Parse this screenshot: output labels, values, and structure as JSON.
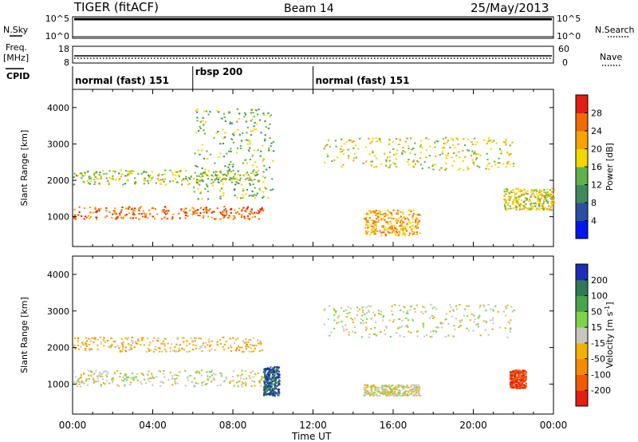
{
  "header": {
    "title": "TIGER (fitACF)",
    "beam": "Beam 14",
    "date": "25/May/2013"
  },
  "status_panel": {
    "left_labels": {
      "nsky": "N.Sky",
      "freq": "Freq.",
      "freq_unit": "[MHz]",
      "cpid": "CPID"
    },
    "right_labels": {
      "nsearch": "N.Search",
      "nave": "Nave"
    },
    "noise_ticks_left": [
      "10^5",
      "10^0"
    ],
    "noise_ticks_right": [
      "10^5",
      "10^0"
    ],
    "freq_ticks": [
      "18",
      "8"
    ],
    "nave_ticks": [
      "60",
      "0"
    ],
    "cpid_segments": [
      {
        "label": "normal (fast) 151",
        "start_hour": 0,
        "end_hour": 6
      },
      {
        "label": "rbsp 200",
        "start_hour": 6,
        "end_hour": 12
      },
      {
        "label": "normal (fast) 151",
        "start_hour": 12,
        "end_hour": 24
      }
    ]
  },
  "chart_data": [
    {
      "type": "heatmap",
      "name_key": "power",
      "ylabel": "Slant Range [km]",
      "ylim": [
        180,
        4500
      ],
      "yticks": [
        1000,
        2000,
        3000,
        4000
      ],
      "xlim": [
        0,
        24
      ],
      "colorbar": {
        "label": "Power [dB]",
        "ticks": [
          "4",
          "8",
          "12",
          "16",
          "20",
          "24",
          "28"
        ],
        "colors": [
          "#0018ee",
          "#2d4fa2",
          "#3e8a5c",
          "#5fb24a",
          "#f2d700",
          "#f7a400",
          "#f26a00",
          "#e41e10"
        ]
      },
      "regions": [
        {
          "desc": "band",
          "x": [
            0,
            9.5
          ],
          "y": [
            950,
            1300
          ],
          "level": 26
        },
        {
          "desc": "band",
          "x": [
            0,
            9.5
          ],
          "y": [
            1900,
            2300
          ],
          "level": 16
        },
        {
          "desc": "arc",
          "x": [
            6,
            10
          ],
          "y": [
            1500,
            4000
          ],
          "level": 14
        },
        {
          "desc": "arc",
          "x": [
            12.5,
            22
          ],
          "y": [
            2300,
            3200
          ],
          "level": 18
        },
        {
          "desc": "blob",
          "x": [
            14.5,
            17.3
          ],
          "y": [
            500,
            1200
          ],
          "level": 22
        },
        {
          "desc": "band",
          "x": [
            21.5,
            24
          ],
          "y": [
            1200,
            1800
          ],
          "level": 18
        }
      ]
    },
    {
      "type": "heatmap",
      "name_key": "velocity",
      "ylabel": "Slant Range [km]",
      "ylim": [
        180,
        4500
      ],
      "yticks": [
        1000,
        2000,
        3000,
        4000
      ],
      "xlim": [
        0,
        24
      ],
      "xticks": [
        "00:00",
        "04:00",
        "08:00",
        "12:00",
        "16:00",
        "20:00",
        "00:00"
      ],
      "xlabel": "Time UT",
      "colorbar": {
        "label": "Velocity [m s",
        "label_sup": "-1",
        "label_end": "]",
        "ticks": [
          "200",
          "100",
          "50",
          "15",
          "-15",
          "-50",
          "-100",
          "-200"
        ],
        "colors": [
          "#1a2fb5",
          "#2e7a52",
          "#4aa54a",
          "#7ed348",
          "#c8c6bc",
          "#f2b100",
          "#f78b00",
          "#f25a00",
          "#e41e10"
        ]
      },
      "regions": [
        {
          "desc": "ground-scatter",
          "x": [
            0,
            10
          ],
          "y": [
            950,
            1400
          ],
          "level": 0
        },
        {
          "desc": "band",
          "x": [
            0,
            9.5
          ],
          "y": [
            1900,
            2300
          ],
          "level": -30
        },
        {
          "desc": "blob",
          "x": [
            9.5,
            10.3
          ],
          "y": [
            700,
            1500
          ],
          "level": 200
        },
        {
          "desc": "arc",
          "x": [
            12.5,
            22
          ],
          "y": [
            2300,
            3200
          ],
          "level": 0
        },
        {
          "desc": "blob",
          "x": [
            14.5,
            17.3
          ],
          "y": [
            700,
            1000
          ],
          "level": 0
        },
        {
          "desc": "blob",
          "x": [
            21.8,
            22.6
          ],
          "y": [
            900,
            1400
          ],
          "level": -200
        }
      ]
    }
  ]
}
